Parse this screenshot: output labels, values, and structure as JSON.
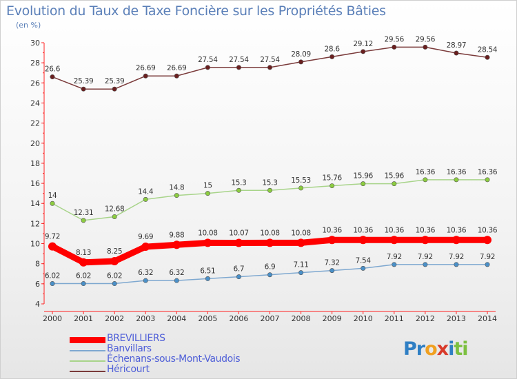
{
  "header": {
    "title": "Evolution du Taux de Taxe Foncière sur les Propriétés Bâties",
    "unit": "(en %)"
  },
  "logo": {
    "parts": [
      {
        "text": "Pr",
        "color": "#2f7fc4"
      },
      {
        "text": "o",
        "color": "#f0a020"
      },
      {
        "text": "x",
        "color": "#d83a2a"
      },
      {
        "text": "i",
        "color": "#2f7fc4"
      },
      {
        "text": "ti",
        "color": "#7cc040"
      }
    ]
  },
  "chart_data": {
    "type": "line",
    "title": "Evolution du Taux de Taxe Foncière sur les Propriétés Bâties",
    "ylabel": "(en %)",
    "xlabel": "",
    "ylim": [
      4,
      30
    ],
    "yticks": [
      4,
      6,
      8,
      10,
      12,
      14,
      16,
      18,
      20,
      22,
      24,
      26,
      28,
      30
    ],
    "grid": false,
    "legend_position": "bottom-left",
    "x": [
      "2000",
      "2001",
      "2002",
      "2003",
      "2004",
      "2005",
      "2006",
      "2007",
      "2008",
      "2009",
      "2010",
      "2011",
      "2012",
      "2013",
      "2014"
    ],
    "series": [
      {
        "name": "BREVILLIERS",
        "color": "#ff0000",
        "marker": "#ff0000",
        "emphasis": true,
        "values": [
          9.72,
          8.13,
          8.25,
          9.69,
          9.88,
          10.08,
          10.07,
          10.08,
          10.08,
          10.36,
          10.36,
          10.36,
          10.36,
          10.36,
          10.36
        ]
      },
      {
        "name": "Banvillars",
        "color": "#7ea8d0",
        "marker": "#4a90c8",
        "emphasis": false,
        "values": [
          6.02,
          6.02,
          6.02,
          6.32,
          6.32,
          6.51,
          6.7,
          6.9,
          7.11,
          7.32,
          7.54,
          7.92,
          7.92,
          7.92,
          7.92
        ]
      },
      {
        "name": "Échenans-sous-Mont-Vaudois",
        "color": "#a8d48a",
        "marker": "#8ccc40",
        "emphasis": false,
        "values": [
          14,
          12.31,
          12.68,
          14.4,
          14.8,
          15,
          15.3,
          15.3,
          15.53,
          15.76,
          15.96,
          15.96,
          16.36,
          16.36,
          16.36
        ]
      },
      {
        "name": "Héricourt",
        "color": "#7a3a3a",
        "marker": "#6a1f1f",
        "emphasis": false,
        "values": [
          26.6,
          25.39,
          25.39,
          26.69,
          26.69,
          27.54,
          27.54,
          27.54,
          28.09,
          28.6,
          29.12,
          29.56,
          29.56,
          28.97,
          28.54
        ]
      }
    ]
  }
}
